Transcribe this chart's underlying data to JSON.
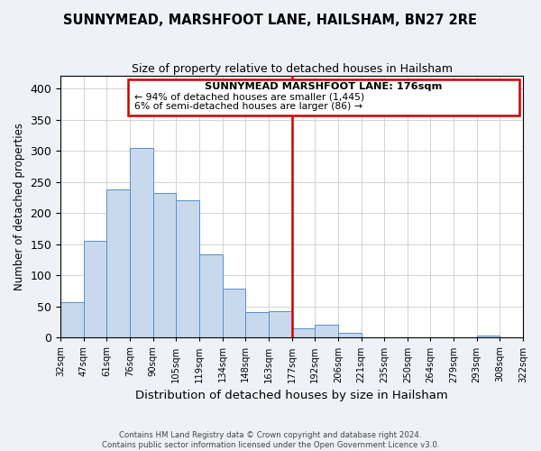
{
  "title": "SUNNYMEAD, MARSHFOOT LANE, HAILSHAM, BN27 2RE",
  "subtitle": "Size of property relative to detached houses in Hailsham",
  "xlabel": "Distribution of detached houses by size in Hailsham",
  "ylabel": "Number of detached properties",
  "bar_labels": [
    "32sqm",
    "47sqm",
    "61sqm",
    "76sqm",
    "90sqm",
    "105sqm",
    "119sqm",
    "134sqm",
    "148sqm",
    "163sqm",
    "177sqm",
    "192sqm",
    "206sqm",
    "221sqm",
    "235sqm",
    "250sqm",
    "264sqm",
    "279sqm",
    "293sqm",
    "308sqm",
    "322sqm"
  ],
  "bar_heights": [
    57,
    155,
    238,
    305,
    232,
    220,
    133,
    78,
    41,
    43,
    15,
    20,
    7,
    0,
    0,
    0,
    0,
    0,
    3,
    0
  ],
  "bar_color": "#c8d9ed",
  "bar_edge_color": "#5a8fc0",
  "ylim": [
    0,
    420
  ],
  "yticks": [
    0,
    50,
    100,
    150,
    200,
    250,
    300,
    350,
    400
  ],
  "vline_label_idx": 10,
  "vline_color": "#cc0000",
  "annotation_title": "SUNNYMEAD MARSHFOOT LANE: 176sqm",
  "annotation_line1": "← 94% of detached houses are smaller (1,445)",
  "annotation_line2": "6% of semi-detached houses are larger (86) →",
  "footer1": "Contains HM Land Registry data © Crown copyright and database right 2024.",
  "footer2": "Contains public sector information licensed under the Open Government Licence v3.0.",
  "background_color": "#eef2f7",
  "plot_background": "#ffffff"
}
